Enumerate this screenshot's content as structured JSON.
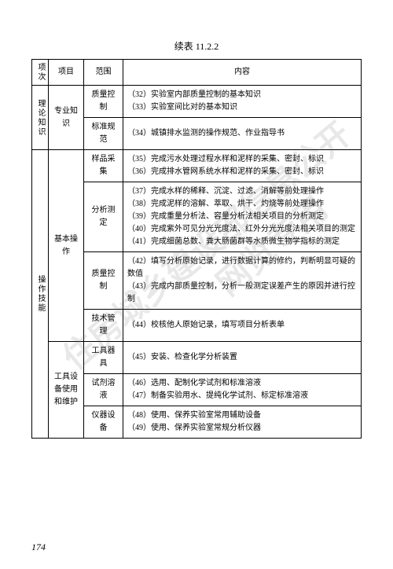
{
  "caption": "续表 11.2.2",
  "pageNumber": "174",
  "headers": {
    "col1": "项次",
    "col2": "项目",
    "col3": "范围",
    "col4": "内容"
  },
  "watermark1": "住房城乡建设部信息公开",
  "watermark2": "网览专用",
  "section1": {
    "vert": "理论知识",
    "item": "专业知识",
    "row1": {
      "scope": "质量控制",
      "content": "（32）实验室内部质量控制的基本知识\n（33）实验室间比对的基本知识"
    },
    "row2": {
      "scope": "标准规范",
      "content": "（34）城镇排水监测的操作规范、作业指导书"
    }
  },
  "section2": {
    "vert": "操作技能",
    "group1": {
      "item": "基本操作",
      "row1": {
        "scope": "样品采集",
        "content": "（35）完成污水处理过程水样和泥样的采集、密封、标识\n（36）完成排水管网系统水样和泥样的采集、密封、标识"
      },
      "row2": {
        "scope": "分析测定",
        "content": "（37）完成水样的稀释、沉淀、过滤、消解等前处理操作\n（38）完成泥样的溶解、萃取、烘干、灼烧等前处理操作\n（39）完成重量分析法、容量分析法相关项目的分析测定\n（40）完成紫外可见分光光度法、红外分光光度法相关项目的测定\n（41）完成细菌总数、粪大肠菌群等水质微生物学指标的测定"
      },
      "row3": {
        "scope": "质量控制",
        "content": "（42）填写分析原始记录，进行数据计算的修约，判断明显可疑的数值\n（43）完成内部质量控制，分析一般测定误差产生的原因并进行控制"
      },
      "row4": {
        "scope": "技术管理",
        "content": "（44）校核他人原始记录，填写项目分析表单"
      }
    },
    "group2": {
      "item": "工具设备使用和维护",
      "row1": {
        "scope": "工具器具",
        "content": "（45）安装、检查化学分析装置"
      },
      "row2": {
        "scope": "试剂溶液",
        "content": "（46）选用、配制化学试剂和标准溶液\n（47）制备实验用水、提纯化学试剂、标定标准溶液"
      },
      "row3": {
        "scope": "仪器设备",
        "content": "（48）使用、保养实验室常用辅助设备\n（49）使用、保养实验室常规分析仪器"
      }
    }
  }
}
